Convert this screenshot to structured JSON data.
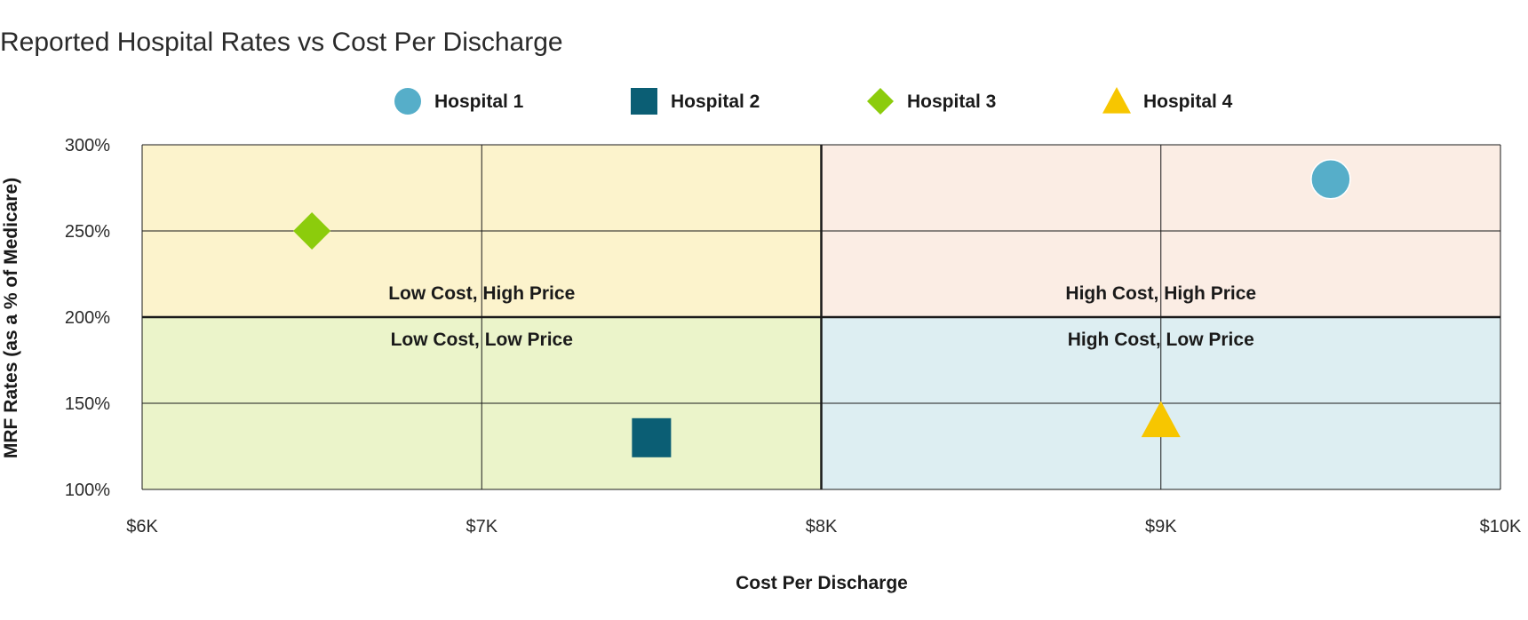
{
  "chart_data": {
    "type": "scatter",
    "title": "Reported Hospital Rates vs Cost Per Discharge",
    "xlabel": "Cost Per Discharge",
    "ylabel": "MRF Rates (as a % of Medicare)",
    "xlim": [
      6000,
      10000
    ],
    "ylim": [
      100,
      300
    ],
    "x_ticks": [
      6000,
      7000,
      8000,
      9000,
      10000
    ],
    "x_tick_labels": [
      "$6K",
      "$7K",
      "$8K",
      "$9K",
      "$10K"
    ],
    "y_ticks": [
      100,
      150,
      200,
      250,
      300
    ],
    "y_tick_labels": [
      "100%",
      "150%",
      "200%",
      "250%",
      "300%"
    ],
    "grid": true,
    "legend_position": "top-center",
    "quadrant_split": {
      "x": 8000,
      "y": 200
    },
    "quadrants": [
      {
        "label": "Low Cost, High Price",
        "region": "top-left",
        "color": "#fcf3cc"
      },
      {
        "label": "High Cost, High Price",
        "region": "top-right",
        "color": "#fbede4"
      },
      {
        "label": "Low Cost, Low Price",
        "region": "bottom-left",
        "color": "#ebf4ca"
      },
      {
        "label": "High Cost, Low Price",
        "region": "bottom-right",
        "color": "#ddeef2"
      }
    ],
    "series": [
      {
        "name": "Hospital 1",
        "marker": "circle",
        "color": "#56aec9",
        "x": [
          9500
        ],
        "y": [
          280
        ]
      },
      {
        "name": "Hospital 2",
        "marker": "square",
        "color": "#0b5e74",
        "x": [
          7500
        ],
        "y": [
          130
        ]
      },
      {
        "name": "Hospital 3",
        "marker": "diamond",
        "color": "#8ccc0c",
        "x": [
          6500
        ],
        "y": [
          250
        ]
      },
      {
        "name": "Hospital 4",
        "marker": "triangle",
        "color": "#f7c600",
        "x": [
          9000
        ],
        "y": [
          140
        ]
      }
    ]
  }
}
